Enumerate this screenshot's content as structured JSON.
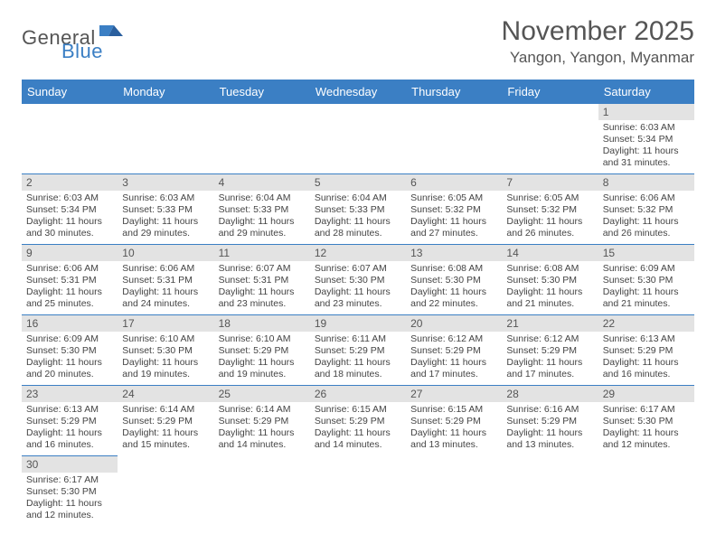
{
  "logo": {
    "text1": "General",
    "text2": "Blue"
  },
  "title": "November 2025",
  "location": "Yangon, Yangon, Myanmar",
  "colors": {
    "accent": "#3b7fc4",
    "header_bg": "#3b7fc4",
    "daynum_bg": "#e3e3e3",
    "text": "#555555"
  },
  "daynames": [
    "Sunday",
    "Monday",
    "Tuesday",
    "Wednesday",
    "Thursday",
    "Friday",
    "Saturday"
  ],
  "weeks": [
    [
      {
        "n": "",
        "lines": []
      },
      {
        "n": "",
        "lines": []
      },
      {
        "n": "",
        "lines": []
      },
      {
        "n": "",
        "lines": []
      },
      {
        "n": "",
        "lines": []
      },
      {
        "n": "",
        "lines": []
      },
      {
        "n": "1",
        "lines": [
          "Sunrise: 6:03 AM",
          "Sunset: 5:34 PM",
          "Daylight: 11 hours and 31 minutes."
        ]
      }
    ],
    [
      {
        "n": "2",
        "lines": [
          "Sunrise: 6:03 AM",
          "Sunset: 5:34 PM",
          "Daylight: 11 hours and 30 minutes."
        ]
      },
      {
        "n": "3",
        "lines": [
          "Sunrise: 6:03 AM",
          "Sunset: 5:33 PM",
          "Daylight: 11 hours and 29 minutes."
        ]
      },
      {
        "n": "4",
        "lines": [
          "Sunrise: 6:04 AM",
          "Sunset: 5:33 PM",
          "Daylight: 11 hours and 29 minutes."
        ]
      },
      {
        "n": "5",
        "lines": [
          "Sunrise: 6:04 AM",
          "Sunset: 5:33 PM",
          "Daylight: 11 hours and 28 minutes."
        ]
      },
      {
        "n": "6",
        "lines": [
          "Sunrise: 6:05 AM",
          "Sunset: 5:32 PM",
          "Daylight: 11 hours and 27 minutes."
        ]
      },
      {
        "n": "7",
        "lines": [
          "Sunrise: 6:05 AM",
          "Sunset: 5:32 PM",
          "Daylight: 11 hours and 26 minutes."
        ]
      },
      {
        "n": "8",
        "lines": [
          "Sunrise: 6:06 AM",
          "Sunset: 5:32 PM",
          "Daylight: 11 hours and 26 minutes."
        ]
      }
    ],
    [
      {
        "n": "9",
        "lines": [
          "Sunrise: 6:06 AM",
          "Sunset: 5:31 PM",
          "Daylight: 11 hours and 25 minutes."
        ]
      },
      {
        "n": "10",
        "lines": [
          "Sunrise: 6:06 AM",
          "Sunset: 5:31 PM",
          "Daylight: 11 hours and 24 minutes."
        ]
      },
      {
        "n": "11",
        "lines": [
          "Sunrise: 6:07 AM",
          "Sunset: 5:31 PM",
          "Daylight: 11 hours and 23 minutes."
        ]
      },
      {
        "n": "12",
        "lines": [
          "Sunrise: 6:07 AM",
          "Sunset: 5:30 PM",
          "Daylight: 11 hours and 23 minutes."
        ]
      },
      {
        "n": "13",
        "lines": [
          "Sunrise: 6:08 AM",
          "Sunset: 5:30 PM",
          "Daylight: 11 hours and 22 minutes."
        ]
      },
      {
        "n": "14",
        "lines": [
          "Sunrise: 6:08 AM",
          "Sunset: 5:30 PM",
          "Daylight: 11 hours and 21 minutes."
        ]
      },
      {
        "n": "15",
        "lines": [
          "Sunrise: 6:09 AM",
          "Sunset: 5:30 PM",
          "Daylight: 11 hours and 21 minutes."
        ]
      }
    ],
    [
      {
        "n": "16",
        "lines": [
          "Sunrise: 6:09 AM",
          "Sunset: 5:30 PM",
          "Daylight: 11 hours and 20 minutes."
        ]
      },
      {
        "n": "17",
        "lines": [
          "Sunrise: 6:10 AM",
          "Sunset: 5:30 PM",
          "Daylight: 11 hours and 19 minutes."
        ]
      },
      {
        "n": "18",
        "lines": [
          "Sunrise: 6:10 AM",
          "Sunset: 5:29 PM",
          "Daylight: 11 hours and 19 minutes."
        ]
      },
      {
        "n": "19",
        "lines": [
          "Sunrise: 6:11 AM",
          "Sunset: 5:29 PM",
          "Daylight: 11 hours and 18 minutes."
        ]
      },
      {
        "n": "20",
        "lines": [
          "Sunrise: 6:12 AM",
          "Sunset: 5:29 PM",
          "Daylight: 11 hours and 17 minutes."
        ]
      },
      {
        "n": "21",
        "lines": [
          "Sunrise: 6:12 AM",
          "Sunset: 5:29 PM",
          "Daylight: 11 hours and 17 minutes."
        ]
      },
      {
        "n": "22",
        "lines": [
          "Sunrise: 6:13 AM",
          "Sunset: 5:29 PM",
          "Daylight: 11 hours and 16 minutes."
        ]
      }
    ],
    [
      {
        "n": "23",
        "lines": [
          "Sunrise: 6:13 AM",
          "Sunset: 5:29 PM",
          "Daylight: 11 hours and 16 minutes."
        ]
      },
      {
        "n": "24",
        "lines": [
          "Sunrise: 6:14 AM",
          "Sunset: 5:29 PM",
          "Daylight: 11 hours and 15 minutes."
        ]
      },
      {
        "n": "25",
        "lines": [
          "Sunrise: 6:14 AM",
          "Sunset: 5:29 PM",
          "Daylight: 11 hours and 14 minutes."
        ]
      },
      {
        "n": "26",
        "lines": [
          "Sunrise: 6:15 AM",
          "Sunset: 5:29 PM",
          "Daylight: 11 hours and 14 minutes."
        ]
      },
      {
        "n": "27",
        "lines": [
          "Sunrise: 6:15 AM",
          "Sunset: 5:29 PM",
          "Daylight: 11 hours and 13 minutes."
        ]
      },
      {
        "n": "28",
        "lines": [
          "Sunrise: 6:16 AM",
          "Sunset: 5:29 PM",
          "Daylight: 11 hours and 13 minutes."
        ]
      },
      {
        "n": "29",
        "lines": [
          "Sunrise: 6:17 AM",
          "Sunset: 5:30 PM",
          "Daylight: 11 hours and 12 minutes."
        ]
      }
    ],
    [
      {
        "n": "30",
        "lines": [
          "Sunrise: 6:17 AM",
          "Sunset: 5:30 PM",
          "Daylight: 11 hours and 12 minutes."
        ]
      },
      {
        "n": "",
        "lines": []
      },
      {
        "n": "",
        "lines": []
      },
      {
        "n": "",
        "lines": []
      },
      {
        "n": "",
        "lines": []
      },
      {
        "n": "",
        "lines": []
      },
      {
        "n": "",
        "lines": []
      }
    ]
  ]
}
